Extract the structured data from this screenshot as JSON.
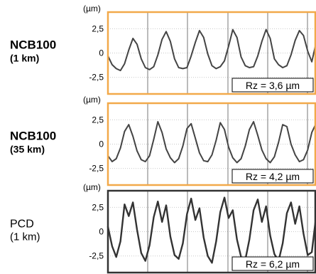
{
  "chart_data": [
    {
      "type": "line",
      "label_main": "NCB100",
      "label_sub": "(1 km)",
      "label_bold": true,
      "unit": "(µm)",
      "y_ticks": [
        "2,5",
        "0",
        "-2,5"
      ],
      "y_tick_values": [
        2.5,
        0,
        -2.5
      ],
      "ylim": [
        -4.2,
        4.2
      ],
      "grid": true,
      "border_color": "#f2a94a",
      "line_color": "#444444",
      "annotation": "Rz = 3,6 µm",
      "x": [
        0,
        0.02,
        0.04,
        0.06,
        0.08,
        0.1,
        0.12,
        0.14,
        0.16,
        0.18,
        0.2,
        0.22,
        0.24,
        0.26,
        0.28,
        0.3,
        0.32,
        0.34,
        0.36,
        0.38,
        0.4,
        0.42,
        0.44,
        0.46,
        0.48,
        0.5,
        0.52,
        0.54,
        0.56,
        0.58,
        0.6,
        0.62,
        0.64,
        0.66,
        0.68,
        0.7,
        0.72,
        0.74,
        0.76,
        0.78,
        0.8,
        0.82,
        0.84,
        0.86,
        0.88,
        0.9,
        0.92,
        0.94,
        0.96,
        0.98,
        1
      ],
      "y": [
        -0.3,
        -1.2,
        -1.6,
        -1.8,
        -1.1,
        0.3,
        1.5,
        0.9,
        -0.6,
        -1.5,
        -1.7,
        -1.4,
        -0.2,
        1.4,
        2.2,
        1.2,
        -0.6,
        -1.5,
        -1.6,
        -1.5,
        -0.3,
        1.1,
        2.3,
        1.6,
        -0.1,
        -1.3,
        -1.6,
        -1.4,
        -0.8,
        0.7,
        2.4,
        1.6,
        -0.4,
        -1.3,
        -1.5,
        -1.4,
        -0.3,
        1.2,
        2.4,
        1.5,
        -0.6,
        -1.2,
        -1.5,
        -1.3,
        -0.2,
        1.3,
        2.3,
        1.8,
        0.2,
        -0.9,
        1.0
      ]
    },
    {
      "type": "line",
      "label_main": "NCB100",
      "label_sub": "(35 km)",
      "label_bold": true,
      "unit": "(µm)",
      "y_ticks": [
        "2,5",
        "0",
        "-2,5"
      ],
      "y_tick_values": [
        2.5,
        0,
        -2.5
      ],
      "ylim": [
        -4.2,
        4.2
      ],
      "grid": true,
      "border_color": "#f2a94a",
      "line_color": "#444444",
      "annotation": "Rz = 4,2 µm",
      "x": [
        0,
        0.02,
        0.04,
        0.06,
        0.08,
        0.1,
        0.12,
        0.14,
        0.16,
        0.18,
        0.2,
        0.22,
        0.24,
        0.26,
        0.28,
        0.3,
        0.32,
        0.34,
        0.36,
        0.38,
        0.4,
        0.42,
        0.44,
        0.46,
        0.48,
        0.5,
        0.52,
        0.54,
        0.56,
        0.58,
        0.6,
        0.62,
        0.64,
        0.66,
        0.68,
        0.7,
        0.72,
        0.74,
        0.76,
        0.78,
        0.8,
        0.82,
        0.84,
        0.86,
        0.88,
        0.9,
        0.92,
        0.94,
        0.96,
        0.98,
        1
      ],
      "y": [
        -1.2,
        -1.8,
        -1.5,
        -0.4,
        1.3,
        2.0,
        0.8,
        -0.7,
        -1.6,
        -1.8,
        -1.2,
        0.5,
        2.3,
        1.2,
        -0.5,
        -1.4,
        -1.9,
        -1.5,
        -0.2,
        1.6,
        2.1,
        0.6,
        -0.9,
        -1.7,
        -1.8,
        -1.1,
        0.4,
        2.2,
        1.5,
        -0.3,
        -1.4,
        -1.9,
        -1.5,
        -0.2,
        1.5,
        2.3,
        0.9,
        -0.6,
        -1.5,
        -1.9,
        -1.3,
        0.2,
        2.0,
        1.8,
        0.0,
        -1.1,
        -1.8,
        -1.6,
        -0.6,
        1.2,
        2.1
      ]
    },
    {
      "type": "line",
      "label_main": "PCD",
      "label_sub": "(1 km)",
      "label_bold": false,
      "unit": "(µm)",
      "y_ticks": [
        "2,5",
        "0",
        "-2,5"
      ],
      "y_tick_values": [
        2.5,
        0,
        -2.5
      ],
      "ylim": [
        -4.2,
        4.2
      ],
      "grid": true,
      "border_color": "#333333",
      "line_color": "#333333",
      "annotation": "Rz = 6,2 µm",
      "x": [
        0,
        0.02,
        0.04,
        0.06,
        0.08,
        0.1,
        0.12,
        0.14,
        0.16,
        0.18,
        0.2,
        0.22,
        0.24,
        0.26,
        0.28,
        0.3,
        0.32,
        0.34,
        0.36,
        0.38,
        0.4,
        0.42,
        0.44,
        0.46,
        0.48,
        0.5,
        0.52,
        0.54,
        0.56,
        0.58,
        0.6,
        0.62,
        0.64,
        0.66,
        0.68,
        0.7,
        0.72,
        0.74,
        0.76,
        0.78,
        0.8,
        0.82,
        0.84,
        0.86,
        0.88,
        0.9,
        0.92,
        0.94,
        0.96,
        0.98,
        1
      ],
      "y": [
        0.5,
        -1.5,
        -2.6,
        -1.0,
        2.8,
        1.6,
        3.0,
        0.2,
        -2.2,
        -3.0,
        -1.4,
        1.5,
        3.1,
        1.0,
        2.7,
        -0.5,
        -2.4,
        -2.8,
        -1.2,
        1.8,
        3.4,
        1.2,
        2.4,
        -0.6,
        -2.5,
        -3.2,
        -1.0,
        2.0,
        3.5,
        1.4,
        2.2,
        -0.8,
        -2.6,
        -2.9,
        -0.8,
        2.2,
        3.3,
        1.0,
        2.6,
        -0.4,
        -2.3,
        -3.0,
        -1.2,
        1.9,
        3.0,
        0.8,
        2.6,
        -0.2,
        -2.4,
        -2.1,
        1.5
      ]
    }
  ]
}
